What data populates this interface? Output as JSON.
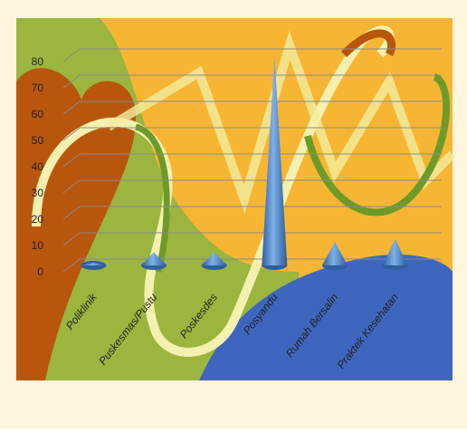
{
  "chart_data": {
    "type": "cone",
    "categories": [
      "Poliklinik",
      "Puskesmas/Pustu",
      "Poskesdes",
      "Posyandu",
      "Rumah Bersalin",
      "Praktek Kesehatan"
    ],
    "values": [
      1,
      5,
      5,
      80,
      9,
      10
    ],
    "color": "#3f78c4",
    "ylim": [
      0,
      80
    ],
    "yticks": [
      0,
      10,
      20,
      30,
      40,
      50,
      60,
      70,
      80
    ],
    "grid": true
  }
}
